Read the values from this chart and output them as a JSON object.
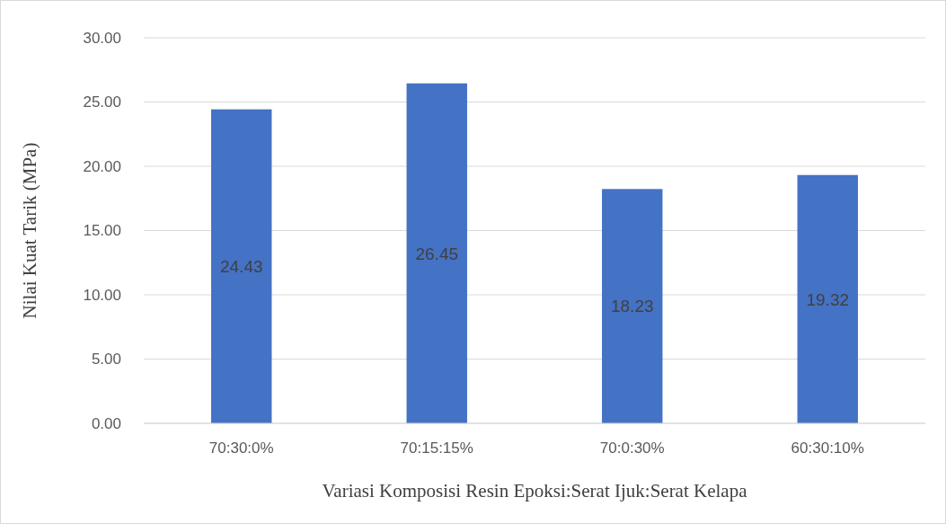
{
  "chart_data": {
    "type": "bar",
    "xlabel": "Variasi Komposisi Resin Epoksi:Serat Ijuk:Serat Kelapa",
    "ylabel": "Nilai Kuat Tarik (MPa)",
    "categories": [
      "70:30:0%",
      "70:15:15%",
      "70:0:30%",
      "60:30:10%"
    ],
    "values": [
      24.43,
      26.45,
      18.23,
      19.32
    ],
    "color": "#4472c4",
    "ylim": [
      0,
      30
    ],
    "yticks": [
      {
        "value": 0,
        "label": "0.00"
      },
      {
        "value": 5,
        "label": "5.00"
      },
      {
        "value": 10,
        "label": "10.00"
      },
      {
        "value": 15,
        "label": "15.00"
      },
      {
        "value": 20,
        "label": "20.00"
      },
      {
        "value": 25,
        "label": "25.00"
      },
      {
        "value": 30,
        "label": "30.00"
      }
    ],
    "grid": "y",
    "data_labels": true
  }
}
